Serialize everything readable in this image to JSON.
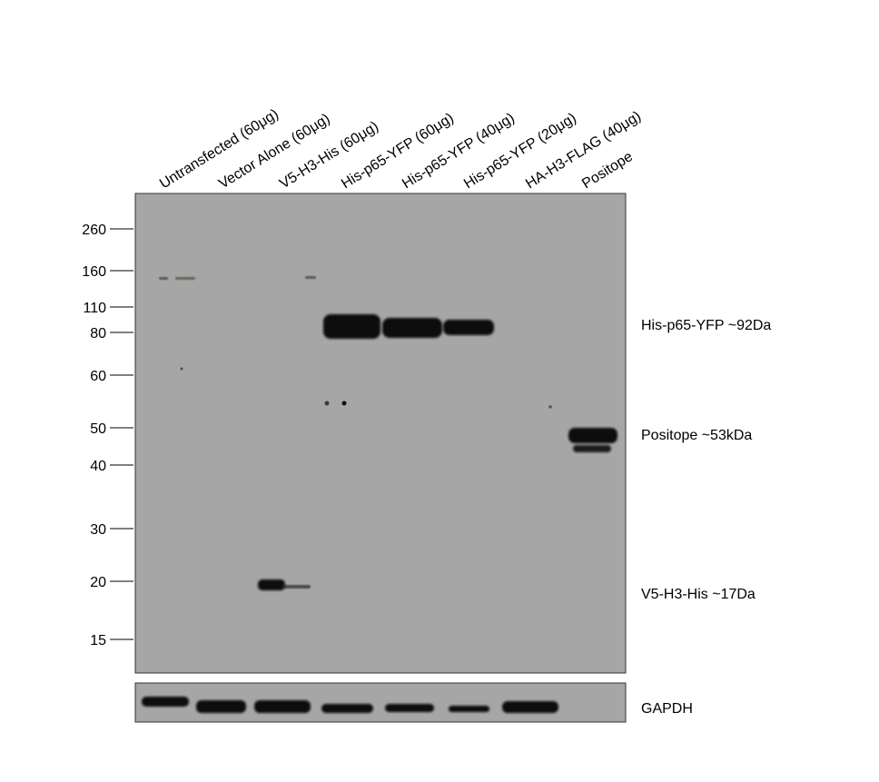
{
  "lanes": [
    "Untransfected (60μg)",
    "Vector Alone (60μg)",
    "V5-H3-His (60μg)",
    "His-p65-YFP (60μg)",
    "His-p65-YFP (40μg)",
    "His-p65-YFP (20μg)",
    "HA-H3-FLAG (40μg)",
    "Positope"
  ],
  "markers": [
    "260",
    "160",
    "110",
    "80",
    "60",
    "50",
    "40",
    "30",
    "20",
    "15"
  ],
  "annotations": {
    "p65": "His-p65-YFP ~92Da",
    "positope": "Positope ~53kDa",
    "v5h3": "V5-H3-His ~17Da",
    "gapdh": "GAPDH"
  },
  "colors": {
    "membrane": "#a6a6a6",
    "band": "#0b0b0b",
    "frame": "#333333"
  }
}
